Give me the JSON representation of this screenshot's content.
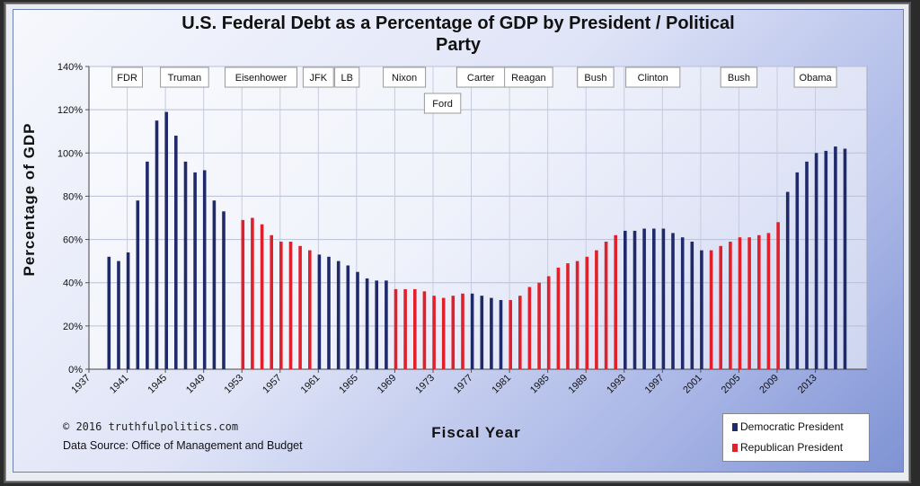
{
  "chart_data": {
    "type": "bar",
    "title": "U.S. Federal Debt as a Percentage of GDP by President / Political\nParty",
    "xlabel": "Fiscal Year",
    "ylabel": "Percentage of GDP",
    "ylim": [
      0,
      140
    ],
    "y_ticks": [
      "0%",
      "20%",
      "40%",
      "60%",
      "80%",
      "100%",
      "120%",
      "140%"
    ],
    "x_ticks": [
      "1937",
      "1941",
      "1945",
      "1949",
      "1953",
      "1957",
      "1961",
      "1965",
      "1969",
      "1973",
      "1977",
      "1981",
      "1985",
      "1989",
      "1993",
      "1997",
      "2001",
      "2005",
      "2009",
      "2013"
    ],
    "x_range": [
      1937,
      2015
    ],
    "colors": {
      "Democratic": "#1f2a6b",
      "Republican": "#e0202a"
    },
    "series": [
      {
        "name": "Federal Debt % of GDP",
        "values": [
          {
            "year": 1940,
            "value": 52,
            "party": "Democratic"
          },
          {
            "year": 1941,
            "value": 50,
            "party": "Democratic"
          },
          {
            "year": 1942,
            "value": 54,
            "party": "Democratic"
          },
          {
            "year": 1943,
            "value": 78,
            "party": "Democratic"
          },
          {
            "year": 1944,
            "value": 96,
            "party": "Democratic"
          },
          {
            "year": 1945,
            "value": 115,
            "party": "Democratic"
          },
          {
            "year": 1946,
            "value": 119,
            "party": "Democratic"
          },
          {
            "year": 1947,
            "value": 108,
            "party": "Democratic"
          },
          {
            "year": 1948,
            "value": 96,
            "party": "Democratic"
          },
          {
            "year": 1949,
            "value": 91,
            "party": "Democratic"
          },
          {
            "year": 1950,
            "value": 92,
            "party": "Democratic"
          },
          {
            "year": 1951,
            "value": 78,
            "party": "Democratic"
          },
          {
            "year": 1952,
            "value": 73,
            "party": "Democratic"
          },
          {
            "year": 1954,
            "value": 69,
            "party": "Republican"
          },
          {
            "year": 1955,
            "value": 70,
            "party": "Republican"
          },
          {
            "year": 1956,
            "value": 67,
            "party": "Republican"
          },
          {
            "year": 1957,
            "value": 62,
            "party": "Republican"
          },
          {
            "year": 1958,
            "value": 59,
            "party": "Republican"
          },
          {
            "year": 1959,
            "value": 59,
            "party": "Republican"
          },
          {
            "year": 1960,
            "value": 57,
            "party": "Republican"
          },
          {
            "year": 1961,
            "value": 55,
            "party": "Republican"
          },
          {
            "year": 1962,
            "value": 53,
            "party": "Democratic"
          },
          {
            "year": 1963,
            "value": 52,
            "party": "Democratic"
          },
          {
            "year": 1964,
            "value": 50,
            "party": "Democratic"
          },
          {
            "year": 1965,
            "value": 48,
            "party": "Democratic"
          },
          {
            "year": 1966,
            "value": 45,
            "party": "Democratic"
          },
          {
            "year": 1967,
            "value": 42,
            "party": "Democratic"
          },
          {
            "year": 1968,
            "value": 41,
            "party": "Democratic"
          },
          {
            "year": 1969,
            "value": 41,
            "party": "Democratic"
          },
          {
            "year": 1970,
            "value": 37,
            "party": "Republican"
          },
          {
            "year": 1971,
            "value": 37,
            "party": "Republican"
          },
          {
            "year": 1972,
            "value": 37,
            "party": "Republican"
          },
          {
            "year": 1973,
            "value": 36,
            "party": "Republican"
          },
          {
            "year": 1974,
            "value": 34,
            "party": "Republican"
          },
          {
            "year": 1975,
            "value": 33,
            "party": "Republican"
          },
          {
            "year": 1976,
            "value": 34,
            "party": "Republican"
          },
          {
            "year": 1977,
            "value": 35,
            "party": "Republican"
          },
          {
            "year": 1978,
            "value": 35,
            "party": "Democratic"
          },
          {
            "year": 1979,
            "value": 34,
            "party": "Democratic"
          },
          {
            "year": 1980,
            "value": 33,
            "party": "Democratic"
          },
          {
            "year": 1981,
            "value": 32,
            "party": "Democratic"
          },
          {
            "year": 1982,
            "value": 32,
            "party": "Republican"
          },
          {
            "year": 1983,
            "value": 34,
            "party": "Republican"
          },
          {
            "year": 1984,
            "value": 38,
            "party": "Republican"
          },
          {
            "year": 1985,
            "value": 40,
            "party": "Republican"
          },
          {
            "year": 1986,
            "value": 43,
            "party": "Republican"
          },
          {
            "year": 1987,
            "value": 47,
            "party": "Republican"
          },
          {
            "year": 1988,
            "value": 49,
            "party": "Republican"
          },
          {
            "year": 1989,
            "value": 50,
            "party": "Republican"
          },
          {
            "year": 1990,
            "value": 52,
            "party": "Republican"
          },
          {
            "year": 1991,
            "value": 55,
            "party": "Republican"
          },
          {
            "year": 1992,
            "value": 59,
            "party": "Republican"
          },
          {
            "year": 1993,
            "value": 62,
            "party": "Republican"
          },
          {
            "year": 1994,
            "value": 64,
            "party": "Democratic"
          },
          {
            "year": 1995,
            "value": 64,
            "party": "Democratic"
          },
          {
            "year": 1996,
            "value": 65,
            "party": "Democratic"
          },
          {
            "year": 1997,
            "value": 65,
            "party": "Democratic"
          },
          {
            "year": 1998,
            "value": 65,
            "party": "Democratic"
          },
          {
            "year": 1999,
            "value": 63,
            "party": "Democratic"
          },
          {
            "year": 2000,
            "value": 61,
            "party": "Democratic"
          },
          {
            "year": 2001,
            "value": 59,
            "party": "Democratic"
          },
          {
            "year": 2002,
            "value": 55,
            "party": "Democratic"
          },
          {
            "year": 2003,
            "value": 55,
            "party": "Republican"
          },
          {
            "year": 2004,
            "value": 57,
            "party": "Republican"
          },
          {
            "year": 2005,
            "value": 59,
            "party": "Republican"
          },
          {
            "year": 2006,
            "value": 61,
            "party": "Republican"
          },
          {
            "year": 2007,
            "value": 61,
            "party": "Republican"
          },
          {
            "year": 2008,
            "value": 62,
            "party": "Republican"
          },
          {
            "year": 2009,
            "value": 63,
            "party": "Republican"
          },
          {
            "year": 2010,
            "value": 68,
            "party": "Republican"
          },
          {
            "year": 2011,
            "value": 82,
            "party": "Democratic"
          },
          {
            "year": 2012,
            "value": 91,
            "party": "Democratic"
          },
          {
            "year": 2013,
            "value": 96,
            "party": "Democratic"
          },
          {
            "year": 2014,
            "value": 100,
            "party": "Democratic"
          },
          {
            "year": 2015,
            "value": 101,
            "party": "Democratic"
          },
          {
            "year": 2016,
            "value": 103,
            "party": "Democratic"
          },
          {
            "year": 2017,
            "value": 102,
            "party": "Democratic"
          }
        ]
      }
    ],
    "president_labels": [
      {
        "name": "FDR",
        "year": 1941
      },
      {
        "name": "Truman",
        "year": 1947
      },
      {
        "name": "Eisenhower",
        "year": 1955
      },
      {
        "name": "JFK",
        "year": 1961
      },
      {
        "name": "LB",
        "year": 1964
      },
      {
        "name": "Nixon",
        "year": 1970
      },
      {
        "name": "Ford",
        "year": 1974
      },
      {
        "name": "Carter",
        "year": 1978
      },
      {
        "name": "Reagan",
        "year": 1983
      },
      {
        "name": "Bush",
        "year": 1990
      },
      {
        "name": "Clinton",
        "year": 1996
      },
      {
        "name": "Bush",
        "year": 2005
      },
      {
        "name": "Obama",
        "year": 2013
      }
    ],
    "legend": [
      "Democratic President",
      "Republican President"
    ]
  },
  "footer": {
    "copyright": "© 2016  truthfulpolitics.com",
    "data_source": "Data Source:  Office of Management and Budget"
  }
}
